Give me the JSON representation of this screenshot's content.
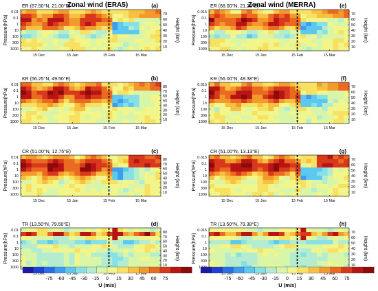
{
  "columns": [
    {
      "title": "Zonal wind (ERA5)"
    },
    {
      "title": "Zonal wind (MERRA)"
    }
  ],
  "chart_data": [
    {
      "type": "heatmap",
      "panel": "(a)",
      "station": "ER (67.50°N, 21.00°E)",
      "ylabel": "Pressure(hPa)",
      "y2label": "Height (km)",
      "xticks": [
        "15 Dec",
        "15 Jan",
        "15 Feb",
        "15 Mar"
      ],
      "yticks": [
        "0.01",
        "0.1",
        "1",
        "10",
        "100",
        "300",
        "1000"
      ],
      "y2ticks": [
        "10",
        "20",
        "30",
        "40",
        "50",
        "60",
        "70"
      ],
      "ssw_marker": "15 Feb"
    },
    {
      "type": "heatmap",
      "panel": "(b)",
      "station": "KR (56.25°N, 49.50°E)",
      "ylabel": "Pressure(hPa)",
      "y2label": "Height (km)",
      "xticks": [
        "15 Dec",
        "15 Jan",
        "15 Feb",
        "15 Mar"
      ],
      "yticks": [
        "0.01",
        "0.1",
        "1",
        "10",
        "100",
        "300",
        "1000"
      ],
      "y2ticks": [
        "10",
        "20",
        "30",
        "40",
        "50",
        "60",
        "70",
        "80"
      ],
      "ssw_marker": "15 Feb"
    },
    {
      "type": "heatmap",
      "panel": "(c)",
      "station": "CR (51.00°N, 12.75°E)",
      "ylabel": "Pressure(hPa)",
      "y2label": "Height (km)",
      "xticks": [
        "15 Dec",
        "15 Jan",
        "15 Feb",
        "15 Mar"
      ],
      "yticks": [
        "0.01",
        "0.1",
        "1",
        "10",
        "100",
        "300",
        "1000"
      ],
      "y2ticks": [
        "10",
        "20",
        "30",
        "40",
        "50",
        "60",
        "70",
        "80"
      ],
      "ssw_marker": "15 Feb"
    },
    {
      "type": "heatmap",
      "panel": "(d)",
      "station": "TR (13.50°N, 79.50°E)",
      "ylabel": "Pressure(hPa)",
      "y2label": "Height (km)",
      "xticks": [
        "15 Dec",
        "15 Jan",
        "15 Feb",
        "15 Mar"
      ],
      "yticks": [
        "0.01",
        "0.1",
        "1",
        "10",
        "100",
        "300",
        "1000"
      ],
      "y2ticks": [
        "10",
        "20",
        "30",
        "40",
        "50",
        "60",
        "70",
        "80"
      ],
      "ssw_marker": "15 Feb"
    },
    {
      "type": "heatmap",
      "panel": "(e)",
      "station": "ER (68.00°N, 21.25°E)",
      "ylabel": "Pressure(hPa)",
      "y2label": "Height (km)",
      "xticks": [
        "15 Dec",
        "15 Jan",
        "15 Feb",
        "15 Mar"
      ],
      "yticks": [
        "0.015",
        "0.1",
        "1",
        "10",
        "100",
        "300",
        "1000"
      ],
      "y2ticks": [
        "10",
        "20",
        "30",
        "40",
        "50",
        "60",
        "70"
      ],
      "ssw_marker": "15 Feb"
    },
    {
      "type": "heatmap",
      "panel": "(f)",
      "station": "KR (56.00°N, 49.38°E)",
      "ylabel": "Pressure(hPa)",
      "y2label": "Height (km)",
      "xticks": [
        "15 Dec",
        "15 Jan",
        "15 Feb",
        "15 Mar"
      ],
      "yticks": [
        "0.015",
        "0.1",
        "1",
        "10",
        "100",
        "300",
        "1000"
      ],
      "y2ticks": [
        "10",
        "20",
        "30",
        "40",
        "50",
        "60",
        "70"
      ],
      "ssw_marker": "15 Feb"
    },
    {
      "type": "heatmap",
      "panel": "(g)",
      "station": "CR (51.00°N, 13.13°E)",
      "ylabel": "Pressure(hPa)",
      "y2label": "Height (km)",
      "xticks": [
        "15 Dec",
        "15 Jan",
        "15 Feb",
        "15 Mar"
      ],
      "yticks": [
        "0.015",
        "0.1",
        "1",
        "10",
        "100",
        "300",
        "1000"
      ],
      "y2ticks": [
        "10",
        "20",
        "30",
        "40",
        "50",
        "60",
        "70"
      ],
      "ssw_marker": "15 Feb"
    },
    {
      "type": "heatmap",
      "panel": "(h)",
      "station": "TR (13.50°N, 79.38°E)",
      "ylabel": "Pressure(hPa)",
      "y2label": "Height (km)",
      "xticks": [
        "15 Dec",
        "15 Jan",
        "15 Feb",
        "15 Mar"
      ],
      "yticks": [
        "0.015",
        "0.1",
        "1",
        "10",
        "100",
        "300",
        "1000"
      ],
      "y2ticks": [
        "10",
        "20",
        "30",
        "40",
        "50",
        "60",
        "70"
      ],
      "ssw_marker": "15 Feb"
    }
  ],
  "colorbar": {
    "label": "U (m/s)",
    "ticks": [
      "-75",
      "-60",
      "-45",
      "-30",
      "-15",
      "0",
      "15",
      "30",
      "45",
      "60",
      "75"
    ],
    "colors": [
      "#1a1aa6",
      "#1f3fd6",
      "#2a6de8",
      "#3f9df0",
      "#5cc8f0",
      "#86e0e6",
      "#b4ecd0",
      "#d8f5a8",
      "#f2f58a",
      "#f8e060",
      "#f8c040",
      "#f39a2c",
      "#ea6a22",
      "#d8381c",
      "#b81414",
      "#8c0a0a"
    ]
  }
}
